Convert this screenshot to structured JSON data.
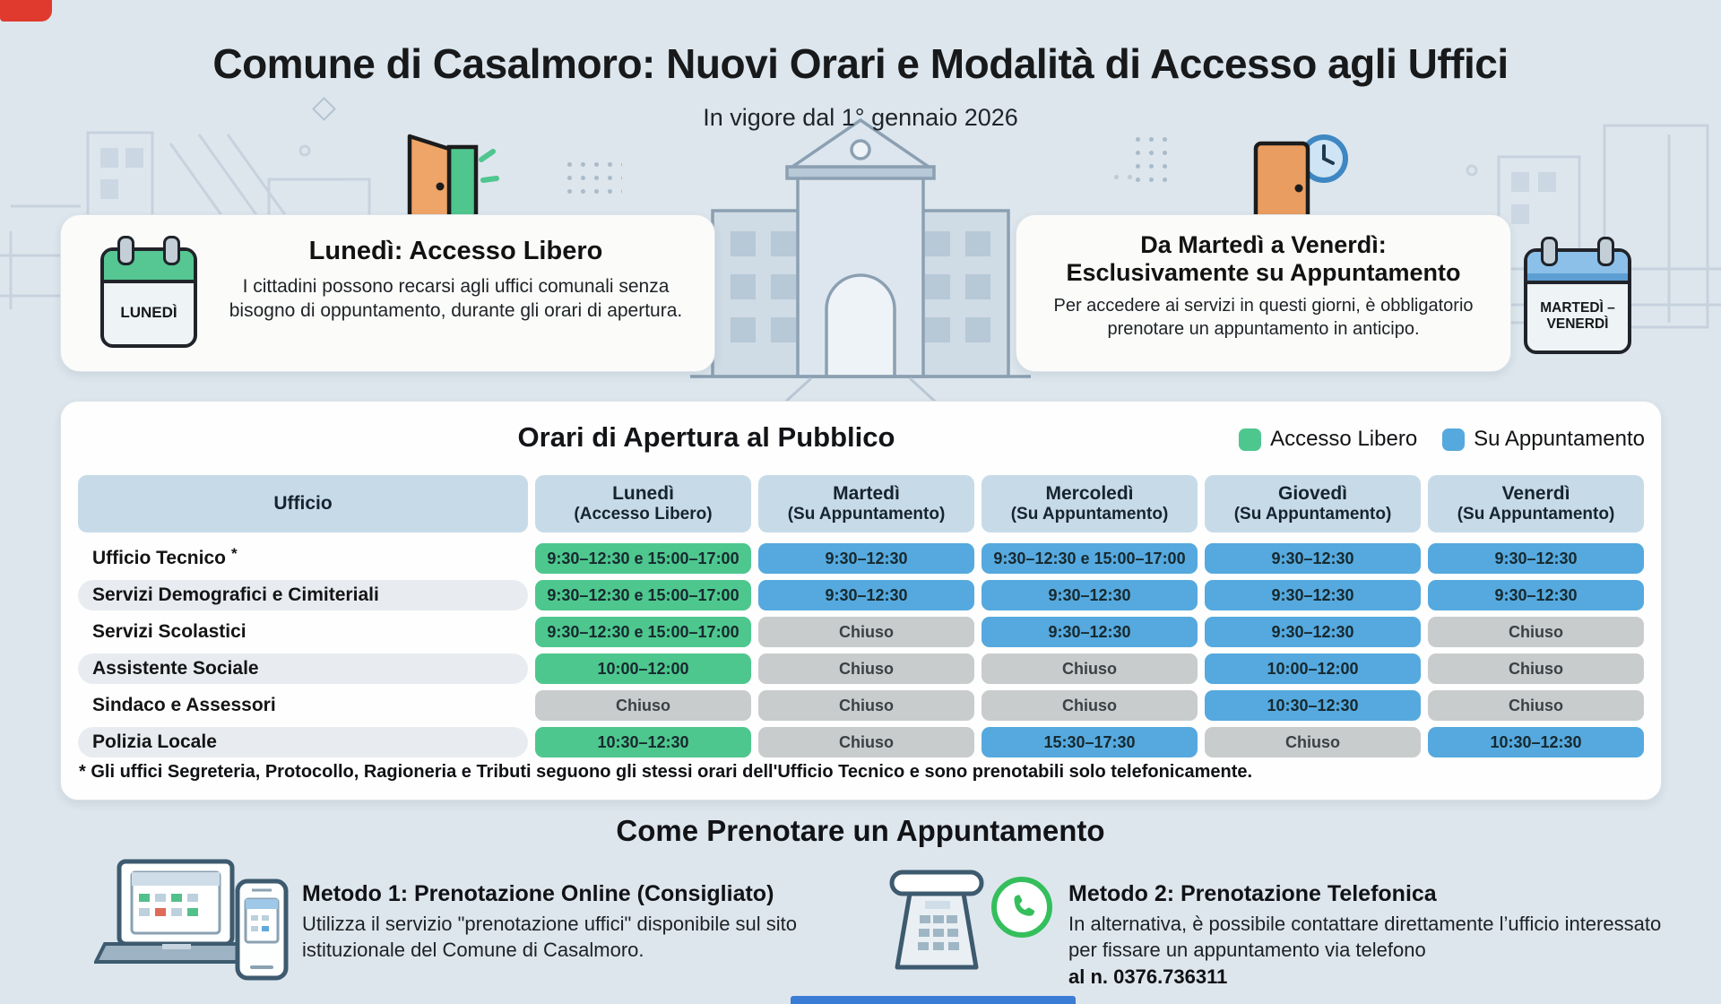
{
  "page": {
    "title": "Comune di Casalmoro: Nuovi Orari e Modalità di Accesso agli Uffici",
    "subtitle": "In vigore dal 1° gennaio 2026"
  },
  "colors": {
    "accesso_libero_green": "#4ec78e",
    "su_appuntamento_blue": "#55a9de",
    "chiuso_gray": "#c9cccd",
    "header_light_blue": "#c7dae8"
  },
  "icons": [
    "open-door-icon",
    "closed-door-clock-icon",
    "calendar-monday-icon",
    "calendar-tue-fri-icon",
    "town-hall-illustration",
    "laptop-phone-icon",
    "telephone-icon",
    "whatsapp-icon"
  ],
  "monday_card": {
    "badge": "LUNEDÌ",
    "title": "Lunedì: Accesso Libero",
    "body": "I cittadini possono recarsi agli uffici comunali senza bisogno di oppuntamento, durante gli orari di apertura."
  },
  "weekdays_card": {
    "title_line1": "Da Martedì a Venerdì:",
    "title_line2": "Esclusivamente su Appuntamento",
    "body": "Per accedere ai servizi in questi giorni, è obbligatorio prenotare un appuntamento in anticipo.",
    "badge_line1": "MARTEDÌ –",
    "badge_line2": "VENERDÌ"
  },
  "schedule": {
    "title": "Orari di Apertura al Pubblico",
    "legend": [
      {
        "label": "Accesso Libero",
        "type": "free"
      },
      {
        "label": "Su Appuntamento",
        "type": "appt"
      }
    ],
    "columns": [
      {
        "line1": "Ufficio",
        "line2": ""
      },
      {
        "line1": "Lunedì",
        "line2": "(Accesso Libero)"
      },
      {
        "line1": "Martedì",
        "line2": "(Su Appuntamento)"
      },
      {
        "line1": "Mercoledì",
        "line2": "(Su Appuntamento)"
      },
      {
        "line1": "Giovedì",
        "line2": "(Su Appuntamento)"
      },
      {
        "line1": "Venerdì",
        "line2": "(Su Appuntamento)"
      }
    ],
    "rows": [
      {
        "office": "Ufficio Tecnico",
        "asterisk": true,
        "cells": [
          {
            "text": "9:30–12:30 e 15:00–17:00",
            "type": "free"
          },
          {
            "text": "9:30–12:30",
            "type": "appt"
          },
          {
            "text": "9:30–12:30 e 15:00–17:00",
            "type": "appt"
          },
          {
            "text": "9:30–12:30",
            "type": "appt"
          },
          {
            "text": "9:30–12:30",
            "type": "appt"
          }
        ]
      },
      {
        "office": "Servizi Demografici e Cimiteriali",
        "asterisk": false,
        "cells": [
          {
            "text": "9:30–12:30 e 15:00–17:00",
            "type": "free"
          },
          {
            "text": "9:30–12:30",
            "type": "appt"
          },
          {
            "text": "9:30–12:30",
            "type": "appt"
          },
          {
            "text": "9:30–12:30",
            "type": "appt"
          },
          {
            "text": "9:30–12:30",
            "type": "appt"
          }
        ]
      },
      {
        "office": "Servizi Scolastici",
        "asterisk": false,
        "cells": [
          {
            "text": "9:30–12:30 e 15:00–17:00",
            "type": "free"
          },
          {
            "text": "Chiuso",
            "type": "closed"
          },
          {
            "text": "9:30–12:30",
            "type": "appt"
          },
          {
            "text": "9:30–12:30",
            "type": "appt"
          },
          {
            "text": "Chiuso",
            "type": "closed"
          }
        ]
      },
      {
        "office": "Assistente Sociale",
        "asterisk": false,
        "cells": [
          {
            "text": "10:00–12:00",
            "type": "free"
          },
          {
            "text": "Chiuso",
            "type": "closed"
          },
          {
            "text": "Chiuso",
            "type": "closed"
          },
          {
            "text": "10:00–12:00",
            "type": "appt"
          },
          {
            "text": "Chiuso",
            "type": "closed"
          }
        ]
      },
      {
        "office": "Sindaco e Assessori",
        "asterisk": false,
        "cells": [
          {
            "text": "Chiuso",
            "type": "closed"
          },
          {
            "text": "Chiuso",
            "type": "closed"
          },
          {
            "text": "Chiuso",
            "type": "closed"
          },
          {
            "text": "10:30–12:30",
            "type": "appt"
          },
          {
            "text": "Chiuso",
            "type": "closed"
          }
        ]
      },
      {
        "office": "Polizia Locale",
        "asterisk": false,
        "cells": [
          {
            "text": "10:30–12:30",
            "type": "free"
          },
          {
            "text": "Chiuso",
            "type": "closed"
          },
          {
            "text": "15:30–17:30",
            "type": "appt"
          },
          {
            "text": "Chiuso",
            "type": "closed"
          },
          {
            "text": "10:30–12:30",
            "type": "appt"
          }
        ]
      }
    ],
    "footnote": "* Gli uffici Segreteria, Protocollo, Ragioneria e Tributi seguono gli stessi orari dell'Ufficio Tecnico e sono prenotabili solo telefonicamente."
  },
  "booking": {
    "title": "Come Prenotare un Appuntamento",
    "method1": {
      "title": "Metodo 1: Prenotazione Online (Consigliato)",
      "body": "Utilizza il servizio \"prenotazione uffici\" disponibile sul sito istituzionale del Comune di Casalmoro."
    },
    "method2": {
      "title": "Metodo 2: Prenotazione Telefonica",
      "body": "In alternativa, è possibile contattare direttamente l’ufficio interessato per fissare un appuntamento via telefono",
      "phone": "al n. 0376.736311"
    }
  }
}
